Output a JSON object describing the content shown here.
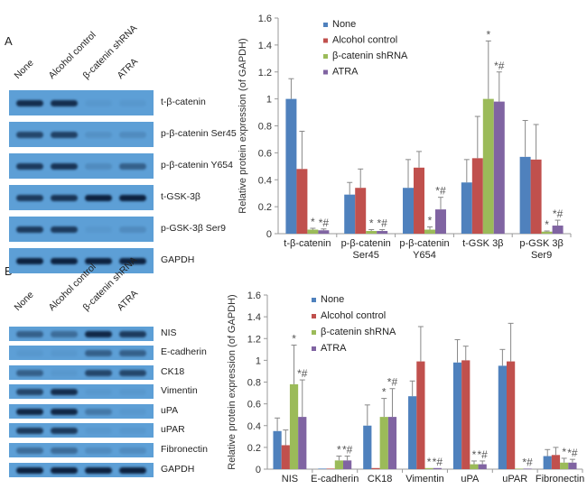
{
  "panelA": {
    "label": "A",
    "lanes": [
      "None",
      "Alcohol control",
      "β-catenin shRNA",
      "ATRA"
    ],
    "blots": [
      {
        "label": "t-β-catenin",
        "intensity": [
          0.9,
          0.9,
          0.05,
          0.05
        ]
      },
      {
        "label": "p-β-catenin Ser45",
        "intensity": [
          0.7,
          0.75,
          0.1,
          0.15
        ]
      },
      {
        "label": "p-β-catenin Y654",
        "intensity": [
          0.8,
          0.85,
          0.15,
          0.5
        ]
      },
      {
        "label": "t-GSK-3β",
        "intensity": [
          0.8,
          0.85,
          1,
          1
        ]
      },
      {
        "label": "p-GSK-3β Ser9",
        "intensity": [
          0.8,
          0.8,
          0.05,
          0.15
        ]
      },
      {
        "label": "GAPDH",
        "intensity": [
          1,
          1,
          1,
          1
        ]
      }
    ]
  },
  "panelB": {
    "label": "B",
    "lanes": [
      "None",
      "Alcohol control",
      "β-catenin shRNA",
      "ATRA"
    ],
    "blots": [
      {
        "label": "NIS",
        "intensity": [
          0.5,
          0.4,
          0.95,
          0.8
        ]
      },
      {
        "label": "E-cadherin",
        "intensity": [
          0.05,
          0.05,
          0.5,
          0.5
        ]
      },
      {
        "label": "CK18",
        "intensity": [
          0.5,
          0.05,
          0.7,
          0.7
        ]
      },
      {
        "label": "Vimentin",
        "intensity": [
          0.7,
          0.9,
          0.05,
          0.05
        ]
      },
      {
        "label": "uPA",
        "intensity": [
          0.95,
          0.95,
          0.3,
          0.05
        ]
      },
      {
        "label": "uPAR",
        "intensity": [
          0.8,
          0.8,
          0.05,
          0.05
        ]
      },
      {
        "label": "Fibronectin",
        "intensity": [
          0.4,
          0.4,
          0.15,
          0.15
        ]
      },
      {
        "label": "GAPDH",
        "intensity": [
          1,
          1,
          1,
          1
        ]
      }
    ]
  },
  "chart_data": [
    {
      "type": "bar",
      "title": "",
      "xlabel": "",
      "ylabel": "Relative protein expression (of GAPDH)",
      "ylim": [
        0,
        1.6
      ],
      "yticks": [
        "0",
        "0.2",
        "0.4",
        "0.6",
        "0.8",
        "1",
        "1.2",
        "1.4",
        "1.6"
      ],
      "legend": "top-left",
      "categories": [
        [
          "t-β-catenin"
        ],
        [
          "p-β-catenin",
          "Ser45"
        ],
        [
          "p-β-catenin",
          "Y654"
        ],
        [
          "t-GSK 3β"
        ],
        [
          "p-GSK 3β",
          "Ser9"
        ]
      ],
      "series": [
        {
          "name": "None",
          "color": "#4f81bd",
          "values": [
            1.0,
            0.29,
            0.34,
            0.38,
            0.57
          ],
          "errors": [
            0.15,
            0.09,
            0.21,
            0.17,
            0.27
          ],
          "marks": [
            "",
            "",
            "",
            "",
            ""
          ]
        },
        {
          "name": "Alcohol control",
          "color": "#c0504d",
          "values": [
            0.48,
            0.34,
            0.49,
            0.56,
            0.55
          ],
          "errors": [
            0.28,
            0.14,
            0.12,
            0.31,
            0.26
          ],
          "marks": [
            "",
            "",
            "",
            "",
            ""
          ]
        },
        {
          "name": "β-catenin shRNA",
          "color": "#9bbb59",
          "values": [
            0.03,
            0.02,
            0.03,
            1.0,
            0.015
          ],
          "errors": [
            0.01,
            0.01,
            0.02,
            0.43,
            0.005
          ],
          "marks": [
            "*",
            "*",
            "*",
            "*",
            "*"
          ]
        },
        {
          "name": "ATRA",
          "color": "#8064a2",
          "values": [
            0.025,
            0.02,
            0.18,
            0.98,
            0.06
          ],
          "errors": [
            0.01,
            0.01,
            0.09,
            0.22,
            0.04
          ],
          "marks": [
            "*#",
            "*#",
            "*#",
            "*#",
            "*#"
          ]
        }
      ]
    },
    {
      "type": "bar",
      "title": "",
      "xlabel": "",
      "ylabel": "Relative protein expression (of GAPDH)",
      "ylim": [
        0,
        1.6
      ],
      "yticks": [
        "0",
        "0.2",
        "0.4",
        "0.6",
        "0.8",
        "1",
        "1.2",
        "1.4",
        "1.6"
      ],
      "legend": "top-left",
      "categories": [
        [
          "NIS"
        ],
        [
          "E-cadherin"
        ],
        [
          "CK18"
        ],
        [
          "Vimentin"
        ],
        [
          "uPA"
        ],
        [
          "uPAR"
        ],
        [
          "Fibronectin"
        ]
      ],
      "series": [
        {
          "name": "None",
          "color": "#4f81bd",
          "values": [
            0.35,
            0.005,
            0.4,
            0.67,
            0.98,
            0.95,
            0.12
          ],
          "errors": [
            0.12,
            0,
            0.19,
            0.14,
            0.21,
            0.15,
            0.06
          ],
          "marks": [
            "",
            "",
            "",
            "",
            "",
            "",
            ""
          ]
        },
        {
          "name": "Alcohol control",
          "color": "#c0504d",
          "values": [
            0.22,
            0.005,
            0.01,
            0.99,
            1.0,
            0.99,
            0.13
          ],
          "errors": [
            0.14,
            0,
            0,
            0.32,
            0.13,
            0.35,
            0.07
          ],
          "marks": [
            "",
            "",
            "",
            "",
            "",
            "",
            ""
          ]
        },
        {
          "name": "β-catenin shRNA",
          "color": "#9bbb59",
          "values": [
            0.78,
            0.08,
            0.48,
            0.01,
            0.045,
            0.005,
            0.06
          ],
          "errors": [
            0.36,
            0.04,
            0.17,
            0,
            0.03,
            0,
            0.04
          ],
          "marks": [
            "*",
            "*",
            "*",
            "*",
            "*",
            "",
            "*"
          ]
        },
        {
          "name": "ATRA",
          "color": "#8064a2",
          "values": [
            0.48,
            0.08,
            0.48,
            0.01,
            0.045,
            0.005,
            0.06
          ],
          "errors": [
            0.34,
            0.04,
            0.26,
            0,
            0.03,
            0,
            0.03
          ],
          "marks": [
            "*#",
            "*#",
            "*#",
            "*#",
            "*#",
            "*#",
            "*#"
          ]
        }
      ]
    }
  ]
}
